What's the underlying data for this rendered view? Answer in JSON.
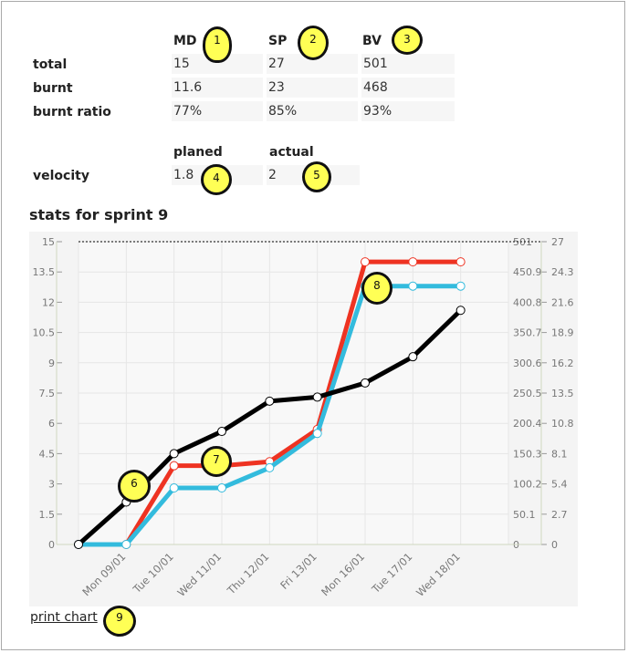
{
  "stats": {
    "columns": [
      "MD",
      "SP",
      "BV"
    ],
    "rows": [
      {
        "label": "total",
        "values": [
          "15",
          "27",
          "501"
        ]
      },
      {
        "label": "burnt",
        "values": [
          "11.6",
          "23",
          "468"
        ]
      },
      {
        "label": "burnt ratio",
        "values": [
          "77%",
          "85%",
          "93%"
        ]
      }
    ]
  },
  "velocity": {
    "columns": [
      "planed",
      "actual"
    ],
    "label": "velocity",
    "values": [
      "1.8",
      "2"
    ]
  },
  "chart_title": "stats for sprint 9",
  "print_label": "print chart",
  "markers": [
    "1",
    "2",
    "3",
    "4",
    "5",
    "6",
    "7",
    "8",
    "9"
  ],
  "chart_data": {
    "type": "line",
    "categories": [
      "Mon 09/01",
      "Tue 10/01",
      "Wed 11/01",
      "Thu 12/01",
      "Fri 13/01",
      "Mon 16/01",
      "Tue 17/01",
      "Wed 18/01"
    ],
    "x_index": [
      0,
      1,
      2,
      3,
      4,
      5,
      6,
      7,
      8,
      9
    ],
    "series": [
      {
        "color": "#000000",
        "axis": "left",
        "x": [
          0,
          1,
          2,
          3,
          4,
          5,
          6,
          7,
          8
        ],
        "values": [
          0,
          2.1,
          4.5,
          5.6,
          7.1,
          7.3,
          8.0,
          9.3,
          11.6
        ]
      },
      {
        "color": "#ee3322",
        "axis": "left",
        "x": [
          0,
          1,
          2,
          3,
          4,
          5,
          6,
          7,
          8
        ],
        "values": [
          0,
          0,
          3.9,
          3.9,
          4.1,
          5.7,
          14.0,
          14.0,
          14.0
        ]
      },
      {
        "color": "#33bbdd",
        "axis": "left",
        "x": [
          0,
          1,
          2,
          3,
          4,
          5,
          6,
          7,
          8
        ],
        "values": [
          0,
          0,
          2.8,
          2.8,
          3.8,
          5.5,
          12.8,
          12.8,
          12.8
        ]
      }
    ],
    "y_left_ticks": [
      "0",
      "1.5",
      "3",
      "4.5",
      "6",
      "7.5",
      "9",
      "10.5",
      "12",
      "13.5",
      "15"
    ],
    "y_mid_ticks": [
      "0",
      "50.1",
      "100.2",
      "150.3",
      "200.4",
      "250.5",
      "300.6",
      "350.7",
      "400.8",
      "450.9",
      "501"
    ],
    "y_right_ticks": [
      "0",
      "2.7",
      "5.4",
      "8.1",
      "10.8",
      "13.5",
      "16.2",
      "18.9",
      "21.6",
      "24.3",
      "27"
    ],
    "ylim": [
      0,
      15
    ],
    "grid": true
  },
  "colors": {
    "marker": "#ffff55",
    "chart_bg": "#f4f4f4"
  }
}
